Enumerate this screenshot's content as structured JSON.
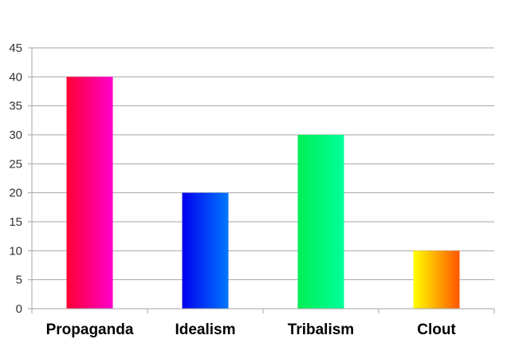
{
  "chart_data": {
    "type": "bar",
    "categories": [
      "Propaganda",
      "Idealism",
      "Tribalism",
      "Clout"
    ],
    "values": [
      40,
      20,
      30,
      10
    ],
    "ylim": [
      0,
      45
    ],
    "yticks": [
      "0",
      "5",
      "10",
      "15",
      "20",
      "25",
      "30",
      "35",
      "40",
      "45"
    ],
    "grid": true,
    "legend": "none",
    "bar_gradients": [
      [
        "#ff0033",
        "#ff00cc"
      ],
      [
        "#0000ee",
        "#0077ff"
      ],
      [
        "#00ee55",
        "#00ff99"
      ],
      [
        "#ffff00",
        "#ff5500"
      ]
    ],
    "title": "",
    "xlabel": "",
    "ylabel": ""
  }
}
